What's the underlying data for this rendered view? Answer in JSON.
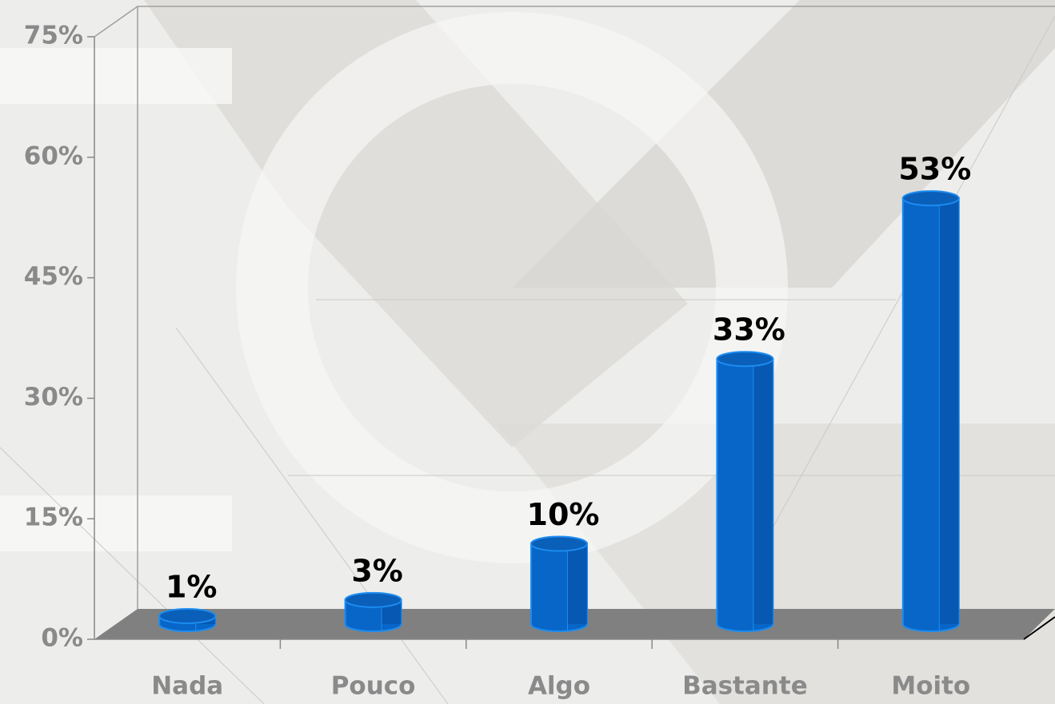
{
  "chart_data": {
    "type": "bar3d",
    "categories": [
      "Nada",
      "Pouco",
      "Algo",
      "Bastante",
      "Moito"
    ],
    "values": [
      1,
      3,
      10,
      33,
      53
    ],
    "value_labels": [
      "1%",
      "3%",
      "10%",
      "33%",
      "53%"
    ],
    "color": "#0866c8",
    "ylim": [
      0,
      75
    ],
    "yticks": [
      {
        "value": 0,
        "label": "0%"
      },
      {
        "value": 15,
        "label": "15%"
      },
      {
        "value": 30,
        "label": "30%"
      },
      {
        "value": 45,
        "label": "45%"
      },
      {
        "value": 60,
        "label": "60%"
      },
      {
        "value": 75,
        "label": "75%"
      }
    ]
  }
}
